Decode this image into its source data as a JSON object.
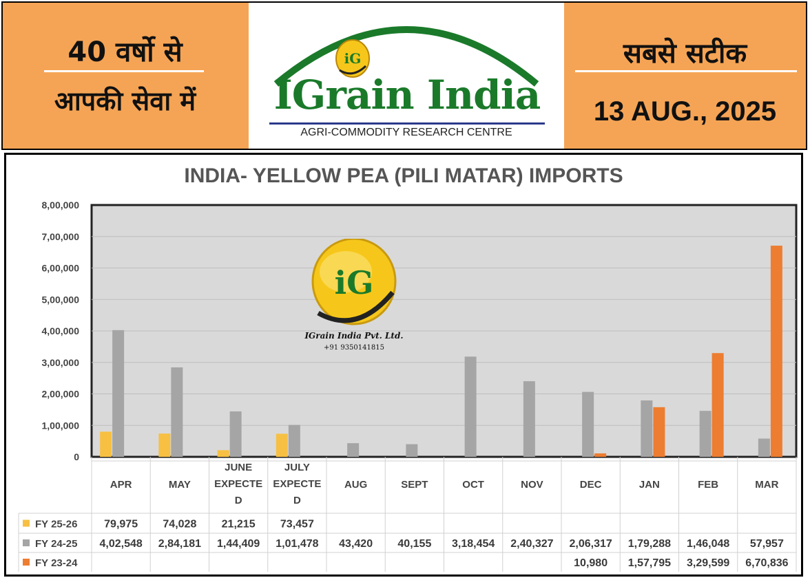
{
  "header": {
    "left_line1": "40 वर्षो से",
    "left_line2": "आपकी सेवा में",
    "logo_badge": "iG",
    "logo_name": "IGrain India",
    "logo_tagline": "AGRI-COMMODITY RESEARCH CENTRE",
    "right_line1": "सबसे सटीक",
    "right_date": "13 AUG., 2025"
  },
  "watermark": {
    "badge": "iG",
    "name": "IGrain India Pvt. Ltd.",
    "phone": "+91 9350141815"
  },
  "colors": {
    "header_bg": "#f5a455",
    "logo_green": "#1a7a2a",
    "plot_bg": "#d9d9d9",
    "fy2526": "#f7c043",
    "fy2425": "#a5a5a5",
    "fy2324": "#ed7d31"
  },
  "chart_data": {
    "type": "bar",
    "title": "INDIA- YELLOW PEA (PILI MATAR) IMPORTS",
    "categories": [
      "APR",
      "MAY",
      "JUNE EXPECTED",
      "JULY EXPECTED",
      "AUG",
      "SEPT",
      "OCT",
      "NOV",
      "DEC",
      "JAN",
      "FEB",
      "MAR"
    ],
    "category_label_lines": [
      [
        "APR"
      ],
      [
        "MAY"
      ],
      [
        "JUNE",
        "EXPECTE",
        "D"
      ],
      [
        "JULY",
        "EXPECTE",
        "D"
      ],
      [
        "AUG"
      ],
      [
        "SEPT"
      ],
      [
        "OCT"
      ],
      [
        "NOV"
      ],
      [
        "DEC"
      ],
      [
        "JAN"
      ],
      [
        "FEB"
      ],
      [
        "MAR"
      ]
    ],
    "ylim": [
      0,
      800000
    ],
    "yticks": [
      0,
      100000,
      200000,
      300000,
      400000,
      500000,
      600000,
      700000,
      800000
    ],
    "ytick_labels": [
      "0",
      "1,00,000",
      "2,00,000",
      "3,00,000",
      "4,00,000",
      "5,00,000",
      "6,00,000",
      "7,00,000",
      "8,00,000"
    ],
    "grid": true,
    "legend": "data-table",
    "series": [
      {
        "name": "FY 25-26",
        "color": "#f7c043",
        "values": [
          79975,
          74028,
          21215,
          73457,
          null,
          null,
          null,
          null,
          null,
          null,
          null,
          null
        ],
        "labels": [
          "79,975",
          "74,028",
          "21,215",
          "73,457",
          "",
          "",
          "",
          "",
          "",
          "",
          "",
          ""
        ]
      },
      {
        "name": "FY 24-25",
        "color": "#a5a5a5",
        "values": [
          402548,
          284181,
          144409,
          101478,
          43420,
          40155,
          318454,
          240327,
          206317,
          179288,
          146048,
          57957
        ],
        "labels": [
          "4,02,548",
          "2,84,181",
          "1,44,409",
          "1,01,478",
          "43,420",
          "40,155",
          "3,18,454",
          "2,40,327",
          "2,06,317",
          "1,79,288",
          "1,46,048",
          "57,957"
        ]
      },
      {
        "name": "FY 23-24",
        "color": "#ed7d31",
        "values": [
          null,
          null,
          null,
          null,
          null,
          null,
          null,
          null,
          10980,
          157795,
          329599,
          670836
        ],
        "labels": [
          "",
          "",
          "",
          "",
          "",
          "",
          "",
          "",
          "10,980",
          "1,57,795",
          "3,29,599",
          "6,70,836"
        ]
      }
    ]
  }
}
